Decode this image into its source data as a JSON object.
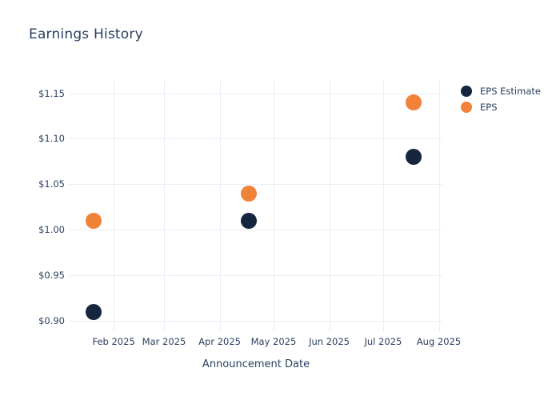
{
  "title": "Earnings History",
  "colors": {
    "eps_estimate": "#15263e",
    "eps": "#f0823a",
    "grid": "#e9eef7",
    "text": "#2a3f5f",
    "background": "#ffffff"
  },
  "legend": {
    "items": [
      {
        "label": "EPS Estimate",
        "color": "#15263e"
      },
      {
        "label": "EPS",
        "color": "#f0823a"
      }
    ]
  },
  "chart_data": {
    "type": "scatter",
    "title": "Earnings History",
    "xlabel": "Announcement Date",
    "ylabel": "",
    "legend_position": "top-right",
    "grid": true,
    "x_axis": {
      "start": "2025-01-07",
      "end": "2025-08-03"
    },
    "y_axis": {
      "min": 0.888,
      "max": 1.1645
    },
    "x_ticks": [
      {
        "date": "2025-02-01",
        "label": "Feb 2025"
      },
      {
        "date": "2025-03-01",
        "label": "Mar 2025"
      },
      {
        "date": "2025-04-01",
        "label": "Apr 2025"
      },
      {
        "date": "2025-05-01",
        "label": "May 2025"
      },
      {
        "date": "2025-06-01",
        "label": "Jun 2025"
      },
      {
        "date": "2025-07-01",
        "label": "Jul 2025"
      },
      {
        "date": "2025-08-01",
        "label": "Aug 2025"
      }
    ],
    "y_ticks": [
      {
        "value": 0.9,
        "label": "$0.90"
      },
      {
        "value": 0.95,
        "label": "$0.95"
      },
      {
        "value": 1.0,
        "label": "$1.00"
      },
      {
        "value": 1.05,
        "label": "$1.05"
      },
      {
        "value": 1.1,
        "label": "$1.10"
      },
      {
        "value": 1.15,
        "label": "$1.15"
      }
    ],
    "series": [
      {
        "name": "EPS Estimate",
        "color": "#15263e",
        "points": [
          {
            "date": "2025-01-21",
            "value": 0.91
          },
          {
            "date": "2025-04-17",
            "value": 1.01
          },
          {
            "date": "2025-07-18",
            "value": 1.08
          }
        ]
      },
      {
        "name": "EPS",
        "color": "#f0823a",
        "points": [
          {
            "date": "2025-01-21",
            "value": 1.01
          },
          {
            "date": "2025-04-17",
            "value": 1.04
          },
          {
            "date": "2025-07-18",
            "value": 1.14
          }
        ]
      }
    ]
  }
}
